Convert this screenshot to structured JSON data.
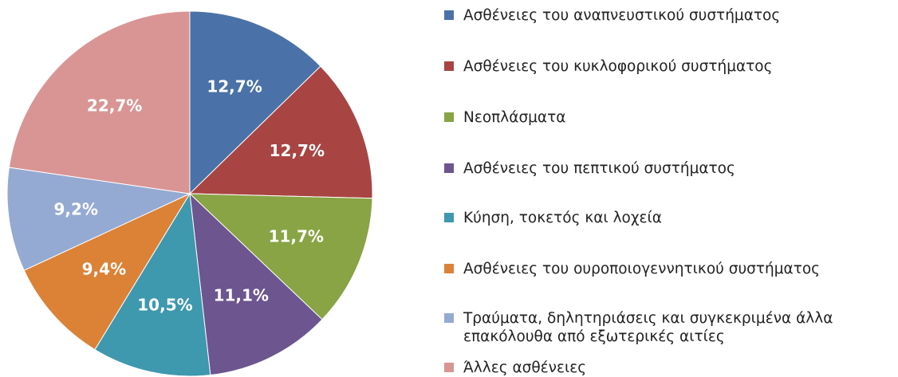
{
  "chart_data": {
    "type": "pie",
    "categories": [
      "Ασθένειες του αναπνευστικού συστήματος",
      "Ασθένειες του κυκλοφορικού συστήματος",
      "Νεοπλάσματα",
      "Ασθένειες του πεπτικού συστήματος",
      "Κύηση, τοκετός και λοχεία",
      "Ασθένειες του ουροποιογεννητικού συστήματος",
      "Τραύματα, δηλητηριάσεις και συγκεκριμένα άλλα επακόλουθα από εξωτερικές αιτίες",
      "Άλλες ασθένειες"
    ],
    "values": [
      12.7,
      12.7,
      11.7,
      11.1,
      10.5,
      9.4,
      9.2,
      22.7
    ],
    "value_labels": [
      "12,7%",
      "12,7%",
      "11,7%",
      "11,1%",
      "10,5%",
      "9,4%",
      "9,2%",
      "22,7%"
    ],
    "colors": [
      "#4a72a8",
      "#a84542",
      "#88a444",
      "#6d5590",
      "#3e98ae",
      "#db8237",
      "#94aad3",
      "#d89594"
    ],
    "legend": "right"
  }
}
